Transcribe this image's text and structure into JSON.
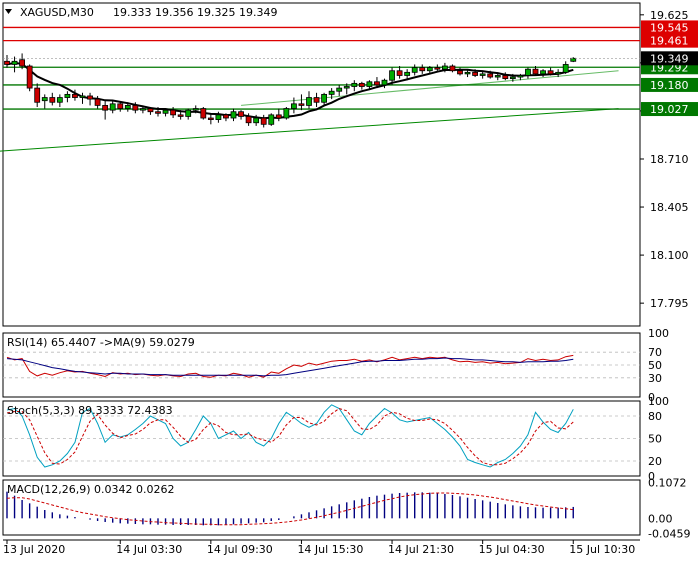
{
  "chart_data": {
    "type": "candlestick",
    "symbol_header": "XAGUSD,M30",
    "ohlc_header": "19.333 19.356 19.325 19.349",
    "price_axis": {
      "ylim": [
        17.65,
        19.7
      ],
      "ticks": [
        19.625,
        19.32,
        19.015,
        18.71,
        18.405,
        18.1,
        17.795
      ],
      "tick_labels": [
        "19.625",
        "19.320",
        "19.015",
        "18.710",
        "18.405",
        "18.100",
        "17.795"
      ]
    },
    "time_axis": {
      "labels": [
        "13 Jul 2020",
        "14 Jul 03:30",
        "14 Jul 09:30",
        "14 Jul 15:30",
        "14 Jul 21:30",
        "15 Jul 04:30",
        "15 Jul 10:30"
      ],
      "label_bar_index": [
        0,
        15,
        27,
        39,
        51,
        63,
        75
      ]
    },
    "horizontal_levels": [
      {
        "value": 19.545,
        "label": "19.545",
        "color": "#dd0000"
      },
      {
        "value": 19.461,
        "label": "19.461",
        "color": "#dd0000"
      },
      {
        "value": 19.292,
        "label": "19.292",
        "color": "#007700"
      },
      {
        "value": 19.18,
        "label": "19.180",
        "color": "#007700"
      },
      {
        "value": 19.027,
        "label": "19.027",
        "color": "#007700"
      }
    ],
    "current_price": {
      "value": 19.349,
      "label": "19.349"
    },
    "trendlines": [
      {
        "from": [
          -1,
          18.76
        ],
        "to": [
          81,
          19.03
        ],
        "color": "#008800"
      },
      {
        "from": [
          31,
          19.05
        ],
        "to": [
          81,
          19.27
        ],
        "color": "#66bb66"
      }
    ],
    "candles": [
      [
        19.33,
        19.37,
        19.29,
        19.31
      ],
      [
        19.31,
        19.36,
        19.26,
        19.33
      ],
      [
        19.34,
        19.38,
        19.28,
        19.3
      ],
      [
        19.3,
        19.31,
        19.14,
        19.16
      ],
      [
        19.16,
        19.19,
        19.04,
        19.07
      ],
      [
        19.08,
        19.12,
        19.03,
        19.1
      ],
      [
        19.1,
        19.13,
        19.05,
        19.07
      ],
      [
        19.07,
        19.12,
        19.04,
        19.1
      ],
      [
        19.1,
        19.14,
        19.07,
        19.12
      ],
      [
        19.12,
        19.15,
        19.08,
        19.1
      ],
      [
        19.1,
        19.13,
        19.06,
        19.11
      ],
      [
        19.11,
        19.13,
        19.05,
        19.09
      ],
      [
        19.09,
        19.11,
        19.03,
        19.05
      ],
      [
        19.05,
        19.08,
        18.96,
        19.02
      ],
      [
        19.02,
        19.08,
        19.0,
        19.06
      ],
      [
        19.06,
        19.07,
        19.01,
        19.03
      ],
      [
        19.03,
        19.07,
        19.01,
        19.05
      ],
      [
        19.05,
        19.07,
        19.0,
        19.02
      ],
      [
        19.02,
        19.05,
        19.0,
        19.03
      ],
      [
        19.03,
        19.04,
        18.99,
        19.01
      ],
      [
        19.01,
        19.04,
        18.98,
        19.0
      ],
      [
        19.0,
        19.03,
        18.98,
        19.02
      ],
      [
        19.02,
        19.04,
        18.97,
        18.99
      ],
      [
        18.99,
        19.02,
        18.96,
        18.98
      ],
      [
        18.98,
        19.03,
        18.96,
        19.02
      ],
      [
        19.02,
        19.05,
        19.0,
        19.03
      ],
      [
        19.03,
        19.04,
        18.96,
        18.97
      ],
      [
        18.97,
        19.0,
        18.93,
        18.96
      ],
      [
        18.96,
        19.01,
        18.94,
        18.99
      ],
      [
        18.99,
        19.0,
        18.95,
        18.97
      ],
      [
        18.97,
        19.03,
        18.95,
        19.01
      ],
      [
        19.01,
        19.02,
        18.96,
        18.98
      ],
      [
        18.98,
        19.0,
        18.92,
        18.94
      ],
      [
        18.94,
        18.99,
        18.92,
        18.97
      ],
      [
        18.97,
        18.99,
        18.91,
        18.93
      ],
      [
        18.93,
        19.0,
        18.92,
        18.99
      ],
      [
        18.99,
        19.03,
        18.95,
        18.97
      ],
      [
        18.97,
        19.04,
        18.96,
        19.03
      ],
      [
        19.03,
        19.1,
        19.0,
        19.06
      ],
      [
        19.06,
        19.12,
        19.02,
        19.05
      ],
      [
        19.05,
        19.14,
        19.03,
        19.1
      ],
      [
        19.1,
        19.13,
        19.04,
        19.07
      ],
      [
        19.07,
        19.13,
        19.05,
        19.12
      ],
      [
        19.12,
        19.16,
        19.09,
        19.14
      ],
      [
        19.14,
        19.18,
        19.11,
        19.16
      ],
      [
        19.16,
        19.19,
        19.12,
        19.17
      ],
      [
        19.17,
        19.21,
        19.14,
        19.19
      ],
      [
        19.19,
        19.2,
        19.15,
        19.17
      ],
      [
        19.17,
        19.21,
        19.15,
        19.2
      ],
      [
        19.2,
        19.23,
        19.16,
        19.18
      ],
      [
        19.18,
        19.22,
        19.16,
        19.21
      ],
      [
        19.21,
        19.29,
        19.18,
        19.27
      ],
      [
        19.27,
        19.3,
        19.22,
        19.24
      ],
      [
        19.24,
        19.28,
        19.21,
        19.26
      ],
      [
        19.26,
        19.31,
        19.24,
        19.29
      ],
      [
        19.29,
        19.31,
        19.25,
        19.27
      ],
      [
        19.27,
        19.3,
        19.25,
        19.29
      ],
      [
        19.29,
        19.31,
        19.27,
        19.28
      ],
      [
        19.28,
        19.32,
        19.26,
        19.3
      ],
      [
        19.3,
        19.31,
        19.26,
        19.27
      ],
      [
        19.27,
        19.29,
        19.24,
        19.25
      ],
      [
        19.25,
        19.28,
        19.23,
        19.26
      ],
      [
        19.26,
        19.28,
        19.23,
        19.24
      ],
      [
        19.24,
        19.27,
        19.22,
        19.25
      ],
      [
        19.25,
        19.27,
        19.22,
        19.23
      ],
      [
        19.23,
        19.26,
        19.21,
        19.24
      ],
      [
        19.24,
        19.26,
        19.21,
        19.22
      ],
      [
        19.22,
        19.25,
        19.2,
        19.23
      ],
      [
        19.23,
        19.25,
        19.21,
        19.24
      ],
      [
        19.24,
        19.29,
        19.22,
        19.28
      ],
      [
        19.28,
        19.3,
        19.24,
        19.25
      ],
      [
        19.25,
        19.28,
        19.23,
        19.27
      ],
      [
        19.27,
        19.29,
        19.24,
        19.25
      ],
      [
        19.25,
        19.28,
        19.23,
        19.26
      ],
      [
        19.26,
        19.33,
        19.25,
        19.31
      ],
      [
        19.33,
        19.356,
        19.325,
        19.349
      ]
    ],
    "indicator_panels": [
      {
        "name": "RSI",
        "header": "RSI(14) 65.4407   ->MA(9) 59.0279",
        "ylim": [
          0,
          100
        ],
        "tick_labels": [
          "100",
          "70",
          "50",
          "30",
          "0"
        ],
        "tick_values": [
          100,
          70,
          50,
          30,
          0
        ],
        "levels": [
          70,
          50,
          30
        ],
        "series": [
          {
            "label": "RSI(14)",
            "color": "#cc0000",
            "style": "solid",
            "values": [
              62,
              58,
              60,
              40,
              33,
              37,
              34,
              38,
              41,
              39,
              40,
              37,
              35,
              32,
              38,
              36,
              37,
              35,
              36,
              34,
              33,
              35,
              33,
              32,
              36,
              37,
              32,
              31,
              34,
              33,
              37,
              35,
              31,
              34,
              31,
              39,
              37,
              44,
              50,
              48,
              53,
              50,
              53,
              56,
              57,
              57,
              59,
              56,
              58,
              55,
              58,
              62,
              58,
              60,
              62,
              60,
              62,
              61,
              62,
              58,
              55,
              56,
              54,
              55,
              53,
              54,
              52,
              53,
              54,
              60,
              57,
              59,
              57,
              58,
              63,
              65
            ]
          },
          {
            "label": "MA(9)",
            "color": "#000080",
            "style": "solid",
            "values": [
              60,
              59,
              58,
              55,
              52,
              49,
              46,
              44,
              42,
              40,
              39,
              38,
              37,
              36,
              37,
              37,
              36,
              36,
              36,
              35,
              35,
              35,
              34,
              34,
              34,
              34,
              34,
              34,
              34,
              34,
              34,
              34,
              34,
              34,
              33,
              34,
              34,
              35,
              37,
              39,
              41,
              43,
              45,
              47,
              49,
              51,
              53,
              55,
              56,
              56,
              57,
              57,
              57,
              58,
              59,
              59,
              60,
              60,
              61,
              60,
              60,
              59,
              58,
              58,
              57,
              56,
              55,
              55,
              54,
              55,
              55,
              55,
              56,
              56,
              57,
              59
            ]
          }
        ]
      },
      {
        "name": "Stoch",
        "header": "Stoch(5,3,3) 89.3333 72.4383",
        "ylim": [
          0,
          100
        ],
        "tick_labels": [
          "100",
          "80",
          "50",
          "20",
          "0"
        ],
        "tick_values": [
          100,
          80,
          50,
          20,
          0
        ],
        "levels": [
          80,
          50,
          20
        ],
        "series": [
          {
            "label": "%K",
            "color": "#00a0c0",
            "style": "solid",
            "values": [
              88,
              90,
              80,
              55,
              25,
              12,
              15,
              20,
              30,
              45,
              85,
              90,
              70,
              45,
              55,
              52,
              55,
              62,
              70,
              80,
              75,
              70,
              50,
              40,
              45,
              62,
              80,
              70,
              50,
              55,
              60,
              50,
              58,
              45,
              40,
              50,
              70,
              85,
              78,
              70,
              65,
              70,
              85,
              95,
              90,
              75,
              60,
              55,
              70,
              80,
              90,
              84,
              75,
              72,
              74,
              76,
              78,
              70,
              62,
              52,
              40,
              22,
              18,
              15,
              12,
              18,
              22,
              30,
              40,
              55,
              85,
              72,
              62,
              58,
              70,
              89
            ]
          },
          {
            "label": "%D",
            "color": "#cc0000",
            "style": "dashed",
            "values": [
              84,
              86,
              86,
              75,
              53,
              31,
              17,
              16,
              22,
              32,
              53,
              73,
              82,
              68,
              57,
              51,
              54,
              56,
              62,
              71,
              75,
              75,
              65,
              53,
              45,
              49,
              62,
              71,
              67,
              58,
              55,
              55,
              56,
              51,
              48,
              45,
              53,
              68,
              78,
              78,
              71,
              68,
              73,
              83,
              90,
              87,
              75,
              63,
              62,
              68,
              80,
              85,
              83,
              77,
              74,
              74,
              76,
              75,
              70,
              61,
              51,
              38,
              27,
              18,
              15,
              15,
              17,
              23,
              31,
              42,
              60,
              71,
              73,
              64,
              63,
              72
            ]
          }
        ]
      },
      {
        "name": "MACD",
        "header": "MACD(12,26,9) 0.0342 0.0262",
        "ylim": [
          -0.05,
          0.115
        ],
        "tick_labels": [
          "0.1072",
          "0.00",
          "-0.0459"
        ],
        "tick_values": [
          0.1072,
          0.0,
          -0.0459
        ],
        "histogram": {
          "label": "MACD",
          "color": "#000080",
          "values": [
            0.08,
            0.068,
            0.055,
            0.045,
            0.035,
            0.025,
            0.018,
            0.012,
            0.008,
            0.004,
            0.0,
            -0.004,
            -0.008,
            -0.011,
            -0.013,
            -0.015,
            -0.016,
            -0.017,
            -0.018,
            -0.018,
            -0.019,
            -0.019,
            -0.02,
            -0.02,
            -0.02,
            -0.02,
            -0.021,
            -0.021,
            -0.021,
            -0.02,
            -0.018,
            -0.016,
            -0.015,
            -0.013,
            -0.012,
            -0.008,
            -0.005,
            0.0,
            0.006,
            0.012,
            0.018,
            0.024,
            0.03,
            0.036,
            0.042,
            0.048,
            0.054,
            0.059,
            0.064,
            0.068,
            0.071,
            0.074,
            0.076,
            0.077,
            0.078,
            0.078,
            0.077,
            0.075,
            0.073,
            0.07,
            0.066,
            0.062,
            0.058,
            0.054,
            0.05,
            0.046,
            0.042,
            0.039,
            0.036,
            0.034,
            0.033,
            0.032,
            0.032,
            0.032,
            0.033,
            0.0342
          ]
        },
        "signal": {
          "label": "Signal",
          "color": "#cc0000",
          "style": "dashed",
          "values": [
            0.06,
            0.062,
            0.062,
            0.058,
            0.052,
            0.046,
            0.04,
            0.034,
            0.028,
            0.022,
            0.017,
            0.013,
            0.009,
            0.005,
            0.002,
            -0.001,
            -0.004,
            -0.006,
            -0.008,
            -0.01,
            -0.011,
            -0.013,
            -0.014,
            -0.015,
            -0.016,
            -0.017,
            -0.018,
            -0.018,
            -0.019,
            -0.019,
            -0.019,
            -0.019,
            -0.018,
            -0.017,
            -0.016,
            -0.015,
            -0.013,
            -0.011,
            -0.008,
            -0.005,
            -0.001,
            0.003,
            0.008,
            0.013,
            0.018,
            0.024,
            0.03,
            0.036,
            0.042,
            0.048,
            0.054,
            0.059,
            0.064,
            0.068,
            0.071,
            0.073,
            0.075,
            0.076,
            0.076,
            0.075,
            0.074,
            0.072,
            0.07,
            0.067,
            0.064,
            0.06,
            0.056,
            0.052,
            0.048,
            0.044,
            0.04,
            0.037,
            0.034,
            0.031,
            0.029,
            0.0262
          ]
        }
      }
    ]
  }
}
